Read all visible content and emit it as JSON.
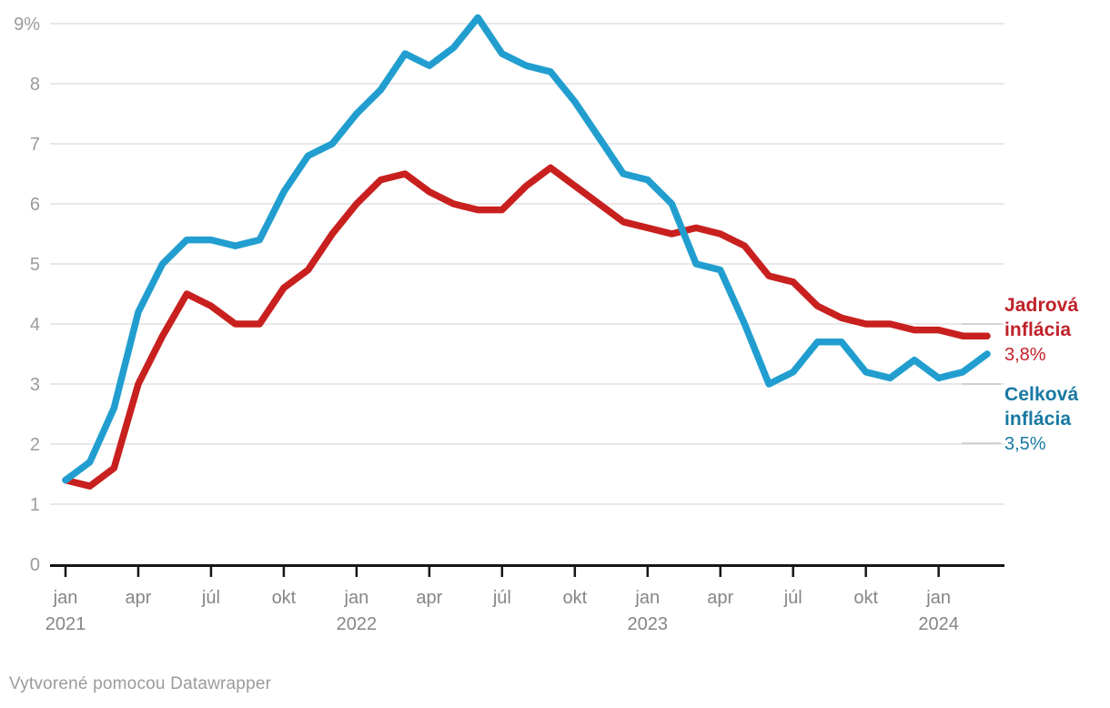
{
  "footer": {
    "text": "Vytvorené pomocou Datawrapper"
  },
  "legend": {
    "items": [
      {
        "name": "Jadrová inflácia",
        "value": "3,8%",
        "text_color": "#c02128"
      },
      {
        "name": "Celková inflácia",
        "value": "3,5%",
        "text_color": "#1878a2"
      }
    ]
  },
  "chart_data": {
    "type": "line",
    "x_start": "2021-01",
    "x_end": "2024-03",
    "x_interval": "month",
    "ylim": [
      0,
      9.3
    ],
    "grid": "horizontal",
    "legend_position": "right-end-labels",
    "y_ticks": [
      {
        "v": 0,
        "label": "0"
      },
      {
        "v": 1,
        "label": "1"
      },
      {
        "v": 2,
        "label": "2"
      },
      {
        "v": 3,
        "label": "3"
      },
      {
        "v": 4,
        "label": "4"
      },
      {
        "v": 5,
        "label": "5"
      },
      {
        "v": 6,
        "label": "6"
      },
      {
        "v": 7,
        "label": "7"
      },
      {
        "v": 8,
        "label": "8"
      },
      {
        "v": 9,
        "label": "9%"
      }
    ],
    "x_ticks": [
      {
        "m": 0,
        "label": "jan",
        "year": "2021"
      },
      {
        "m": 3,
        "label": "apr"
      },
      {
        "m": 6,
        "label": "júl"
      },
      {
        "m": 9,
        "label": "okt"
      },
      {
        "m": 12,
        "label": "jan",
        "year": "2022"
      },
      {
        "m": 15,
        "label": "apr"
      },
      {
        "m": 18,
        "label": "júl"
      },
      {
        "m": 21,
        "label": "okt"
      },
      {
        "m": 24,
        "label": "jan",
        "year": "2023"
      },
      {
        "m": 27,
        "label": "apr"
      },
      {
        "m": 30,
        "label": "júl"
      },
      {
        "m": 33,
        "label": "okt"
      },
      {
        "m": 36,
        "label": "jan",
        "year": "2024"
      }
    ],
    "series": [
      {
        "name": "Jadrová inflácia",
        "color": "#c8201e",
        "end_value_label": "3,8%",
        "values": [
          1.4,
          1.3,
          1.6,
          3.0,
          3.8,
          4.5,
          4.3,
          4.0,
          4.0,
          4.6,
          4.9,
          5.5,
          6.0,
          6.4,
          6.5,
          6.2,
          6.0,
          5.9,
          5.9,
          6.3,
          6.6,
          6.3,
          6.0,
          5.7,
          5.6,
          5.5,
          5.6,
          5.5,
          5.3,
          4.8,
          4.7,
          4.3,
          4.1,
          4.0,
          4.0,
          3.9,
          3.9,
          3.8,
          3.8
        ]
      },
      {
        "name": "Celková inflácia",
        "color": "#219ecf",
        "end_value_label": "3,5%",
        "values": [
          1.4,
          1.7,
          2.6,
          4.2,
          5.0,
          5.4,
          5.4,
          5.3,
          5.4,
          6.2,
          6.8,
          7.0,
          7.5,
          7.9,
          8.5,
          8.3,
          8.6,
          9.1,
          8.5,
          8.3,
          8.2,
          7.7,
          7.1,
          6.5,
          6.4,
          6.0,
          5.0,
          4.9,
          4.0,
          3.0,
          3.2,
          3.7,
          3.7,
          3.2,
          3.1,
          3.4,
          3.1,
          3.2,
          3.5
        ]
      }
    ],
    "colors": {
      "axis": "#161616",
      "grid": "#e8e8e8",
      "y_label": "#9b9b9b",
      "x_label": "#868686",
      "connector": "#c9c9c9"
    }
  }
}
